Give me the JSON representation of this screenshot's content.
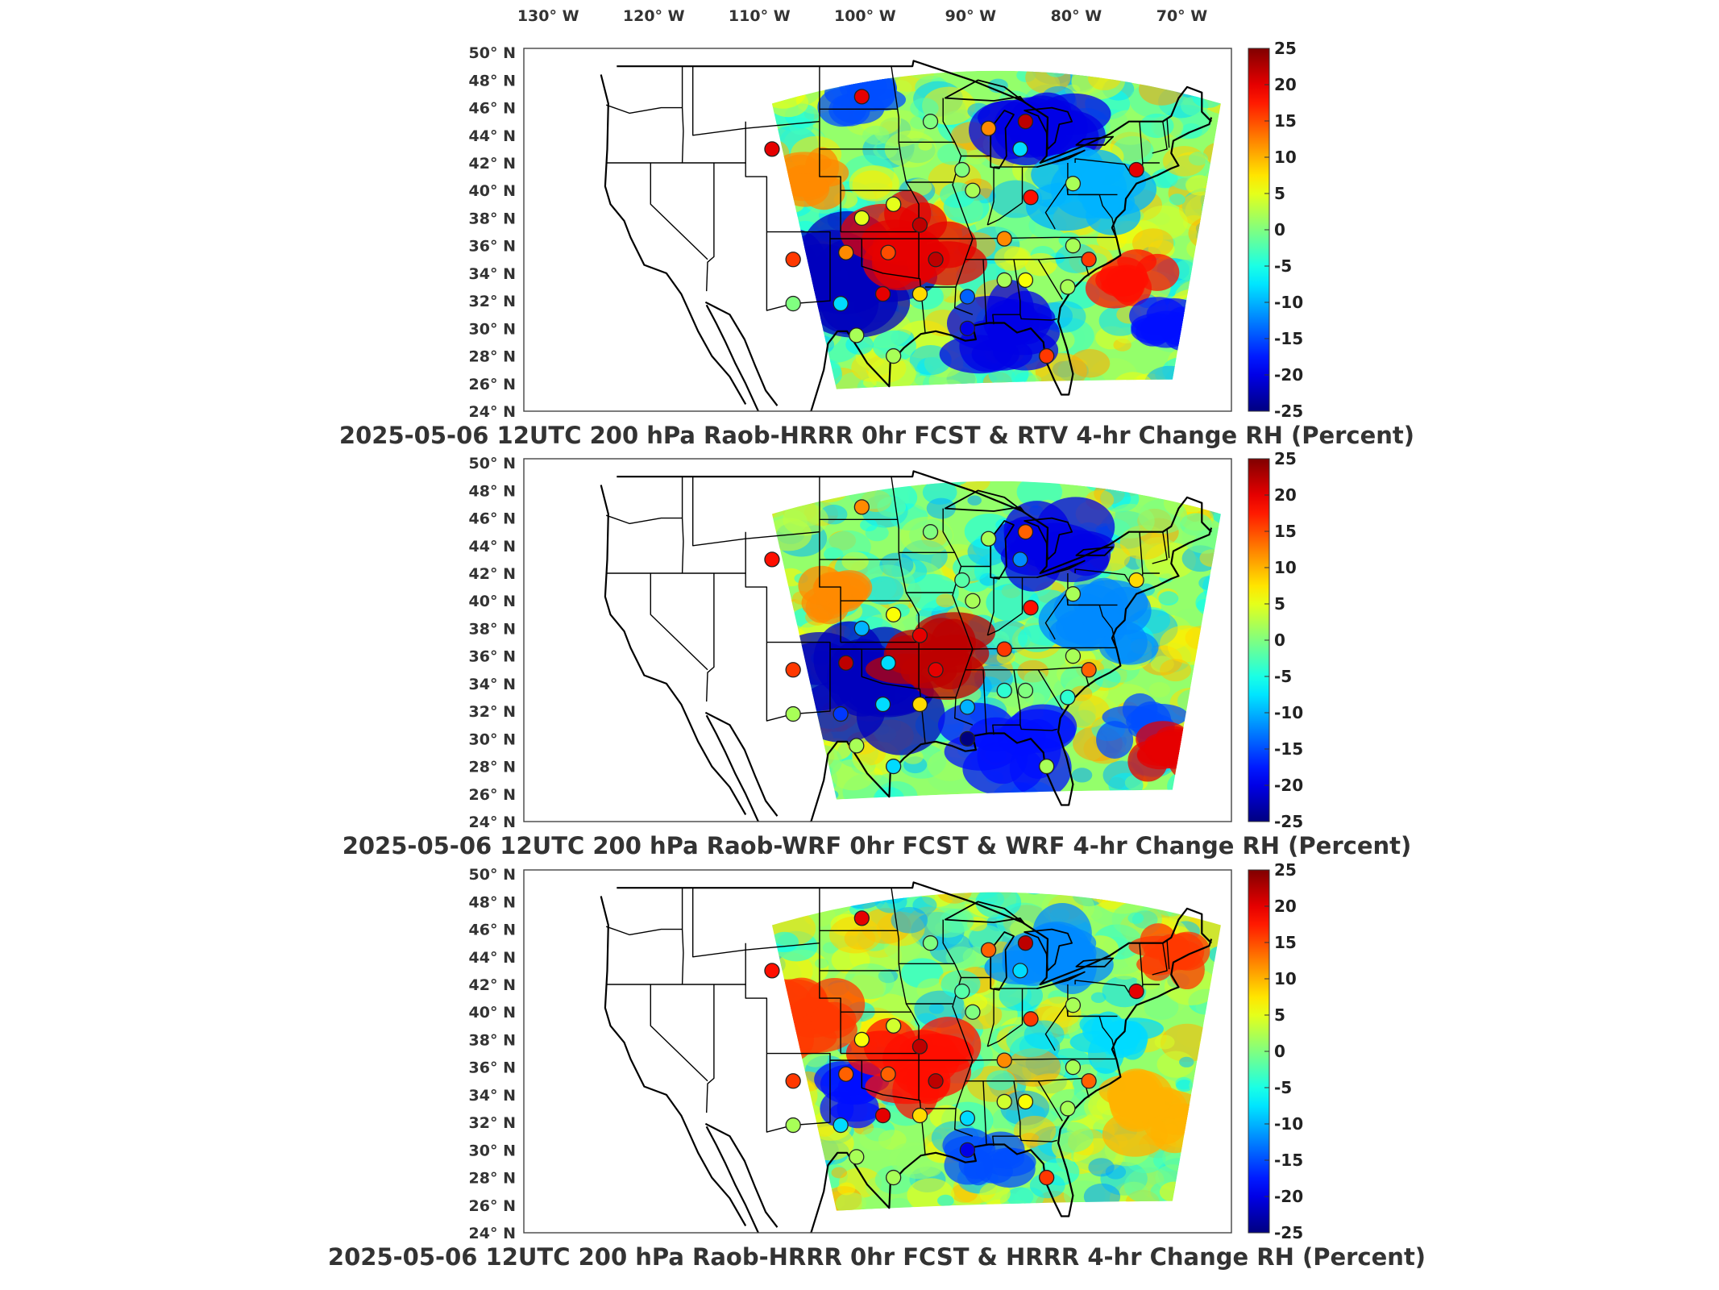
{
  "chart_data": [
    {
      "type": "heatmap",
      "title": "2025-05-06 12UTC 200 hPa Raob-HRRR 0hr FCST & RTV 4-hr Change RH (Percent)",
      "x_ticks": [
        "130° W",
        "120° W",
        "110° W",
        "100° W",
        "90° W",
        "80° W",
        "70° W"
      ],
      "y_ticks": [
        "50° N",
        "48° N",
        "46° N",
        "44° N",
        "42° N",
        "40° N",
        "38° N",
        "36° N",
        "34° N",
        "32° N",
        "30° N",
        "28° N",
        "26° N",
        "24° N"
      ],
      "colorbar": {
        "min": -25,
        "max": 25,
        "ticks": [
          "25",
          "20",
          "15",
          "10",
          "5",
          "0",
          "-5",
          "-10",
          "-15",
          "-20",
          "-25"
        ]
      },
      "field_features": [
        {
          "lon": -102,
          "lat": 33.5,
          "value": -22,
          "r": 4
        },
        {
          "lon": -87,
          "lat": 29.5,
          "value": -20,
          "r": 3
        },
        {
          "lon": -83,
          "lat": 44.5,
          "value": -20,
          "r": 3
        },
        {
          "lon": -95,
          "lat": 36.5,
          "value": 20,
          "r": 3
        },
        {
          "lon": -100,
          "lat": 46.5,
          "value": -15,
          "r": 2
        },
        {
          "lon": -74,
          "lat": 34,
          "value": 18,
          "r": 2
        },
        {
          "lon": -71,
          "lat": 30,
          "value": -18,
          "r": 2
        },
        {
          "lon": -78,
          "lat": 40,
          "value": -10,
          "r": 3
        },
        {
          "lon": -104,
          "lat": 41,
          "value": 12,
          "r": 2
        }
      ],
      "stations": [
        {
          "lon": -100,
          "lat": 46.8,
          "value": 20
        },
        {
          "lon": -108.5,
          "lat": 43.0,
          "value": 20
        },
        {
          "lon": -93.5,
          "lat": 45.0,
          "value": 0
        },
        {
          "lon": -88.0,
          "lat": 44.5,
          "value": 12
        },
        {
          "lon": -84.5,
          "lat": 45.0,
          "value": 22
        },
        {
          "lon": -85.0,
          "lat": 43.0,
          "value": -8
        },
        {
          "lon": -90.5,
          "lat": 41.5,
          "value": 0
        },
        {
          "lon": -89.5,
          "lat": 40.0,
          "value": 2
        },
        {
          "lon": -84.0,
          "lat": 39.5,
          "value": 18
        },
        {
          "lon": -80.0,
          "lat": 40.5,
          "value": 2
        },
        {
          "lon": -97.0,
          "lat": 39.0,
          "value": 5
        },
        {
          "lon": -100.0,
          "lat": 38.0,
          "value": 5
        },
        {
          "lon": -94.5,
          "lat": 37.5,
          "value": 22
        },
        {
          "lon": -93.0,
          "lat": 35.0,
          "value": 22
        },
        {
          "lon": -97.5,
          "lat": 35.5,
          "value": 15
        },
        {
          "lon": -101.5,
          "lat": 35.5,
          "value": 12
        },
        {
          "lon": -106.5,
          "lat": 35.0,
          "value": 16
        },
        {
          "lon": -98.0,
          "lat": 32.5,
          "value": 20
        },
        {
          "lon": -102.0,
          "lat": 31.8,
          "value": -8
        },
        {
          "lon": -94.5,
          "lat": 32.5,
          "value": 8
        },
        {
          "lon": -90.0,
          "lat": 32.3,
          "value": -14
        },
        {
          "lon": -86.5,
          "lat": 33.5,
          "value": 2
        },
        {
          "lon": -84.5,
          "lat": 33.5,
          "value": 6
        },
        {
          "lon": -86.5,
          "lat": 36.5,
          "value": 12
        },
        {
          "lon": -80.0,
          "lat": 36.0,
          "value": 2
        },
        {
          "lon": -78.5,
          "lat": 35.0,
          "value": 16
        },
        {
          "lon": -80.5,
          "lat": 33.0,
          "value": 2
        },
        {
          "lon": -74.0,
          "lat": 41.5,
          "value": 20
        },
        {
          "lon": -90.0,
          "lat": 30.0,
          "value": -20
        },
        {
          "lon": -97.0,
          "lat": 28.0,
          "value": 2
        },
        {
          "lon": -100.5,
          "lat": 29.5,
          "value": 2
        },
        {
          "lon": -106.5,
          "lat": 31.8,
          "value": 0
        },
        {
          "lon": -82.5,
          "lat": 28.0,
          "value": 16
        }
      ]
    },
    {
      "type": "heatmap",
      "title": "2025-05-06 12UTC 200 hPa Raob-WRF 0hr FCST & WRF 4-hr Change RH (Percent)",
      "x_ticks": [],
      "y_ticks": [
        "50° N",
        "48° N",
        "46° N",
        "44° N",
        "42° N",
        "40° N",
        "38° N",
        "36° N",
        "34° N",
        "32° N",
        "30° N",
        "28° N",
        "26° N",
        "24° N"
      ],
      "colorbar": {
        "min": -25,
        "max": 25,
        "ticks": [
          "25",
          "20",
          "15",
          "10",
          "5",
          "0",
          "-5",
          "-10",
          "-15",
          "-20",
          "-25"
        ]
      },
      "field_features": [
        {
          "lon": -100,
          "lat": 33.5,
          "value": -22,
          "r": 4
        },
        {
          "lon": -93,
          "lat": 36.5,
          "value": 22,
          "r": 3
        },
        {
          "lon": -82,
          "lat": 44.5,
          "value": -20,
          "r": 3
        },
        {
          "lon": -86,
          "lat": 29.5,
          "value": -18,
          "r": 3
        },
        {
          "lon": -74,
          "lat": 31,
          "value": -15,
          "r": 2
        },
        {
          "lon": -71,
          "lat": 29,
          "value": 20,
          "r": 2
        },
        {
          "lon": -103,
          "lat": 40.5,
          "value": 12,
          "r": 2
        },
        {
          "lon": -78,
          "lat": 38,
          "value": -12,
          "r": 3
        }
      ],
      "stations": [
        {
          "lon": -100,
          "lat": 46.8,
          "value": 12
        },
        {
          "lon": -108.5,
          "lat": 43.0,
          "value": 18
        },
        {
          "lon": -93.5,
          "lat": 45.0,
          "value": 0
        },
        {
          "lon": -88.0,
          "lat": 44.5,
          "value": 2
        },
        {
          "lon": -84.5,
          "lat": 45.0,
          "value": 14
        },
        {
          "lon": -85.0,
          "lat": 43.0,
          "value": -12
        },
        {
          "lon": -90.5,
          "lat": 41.5,
          "value": -2
        },
        {
          "lon": -89.5,
          "lat": 40.0,
          "value": 2
        },
        {
          "lon": -84.0,
          "lat": 39.5,
          "value": 18
        },
        {
          "lon": -80.0,
          "lat": 40.5,
          "value": 2
        },
        {
          "lon": -97.0,
          "lat": 39.0,
          "value": 6
        },
        {
          "lon": -100.0,
          "lat": 38.0,
          "value": -10
        },
        {
          "lon": -94.5,
          "lat": 37.5,
          "value": 20
        },
        {
          "lon": -93.0,
          "lat": 35.0,
          "value": 20
        },
        {
          "lon": -97.5,
          "lat": 35.5,
          "value": -8
        },
        {
          "lon": -101.5,
          "lat": 35.5,
          "value": 22
        },
        {
          "lon": -106.5,
          "lat": 35.0,
          "value": 16
        },
        {
          "lon": -98.0,
          "lat": 32.5,
          "value": -8
        },
        {
          "lon": -102.0,
          "lat": 31.8,
          "value": -16
        },
        {
          "lon": -94.5,
          "lat": 32.5,
          "value": 8
        },
        {
          "lon": -90.0,
          "lat": 32.3,
          "value": -10
        },
        {
          "lon": -86.5,
          "lat": 33.5,
          "value": -4
        },
        {
          "lon": -84.5,
          "lat": 33.5,
          "value": 0
        },
        {
          "lon": -86.5,
          "lat": 36.5,
          "value": 16
        },
        {
          "lon": -80.0,
          "lat": 36.0,
          "value": 2
        },
        {
          "lon": -78.5,
          "lat": 35.0,
          "value": 14
        },
        {
          "lon": -80.5,
          "lat": 33.0,
          "value": -4
        },
        {
          "lon": -74.0,
          "lat": 41.5,
          "value": 8
        },
        {
          "lon": -90.0,
          "lat": 30.0,
          "value": -25
        },
        {
          "lon": -97.0,
          "lat": 28.0,
          "value": -8
        },
        {
          "lon": -100.5,
          "lat": 29.5,
          "value": 2
        },
        {
          "lon": -106.5,
          "lat": 31.8,
          "value": 2
        },
        {
          "lon": -82.5,
          "lat": 28.0,
          "value": 2
        }
      ]
    },
    {
      "type": "heatmap",
      "title": "2025-05-06 12UTC 200 hPa Raob-HRRR 0hr FCST & HRRR 4-hr Change RH (Percent)",
      "x_ticks": [],
      "y_ticks": [
        "50° N",
        "48° N",
        "46° N",
        "44° N",
        "42° N",
        "40° N",
        "38° N",
        "36° N",
        "34° N",
        "32° N",
        "30° N",
        "28° N",
        "26° N",
        "24° N"
      ],
      "colorbar": {
        "min": -25,
        "max": 25,
        "ticks": [
          "25",
          "20",
          "15",
          "10",
          "5",
          "0",
          "-5",
          "-10",
          "-15",
          "-20",
          "-25"
        ]
      },
      "field_features": [
        {
          "lon": -105,
          "lat": 39.5,
          "value": 16,
          "r": 3
        },
        {
          "lon": -101,
          "lat": 34,
          "value": -18,
          "r": 2
        },
        {
          "lon": -95,
          "lat": 36,
          "value": 18,
          "r": 3
        },
        {
          "lon": -83,
          "lat": 44,
          "value": -12,
          "r": 3
        },
        {
          "lon": -88,
          "lat": 29.5,
          "value": -15,
          "r": 2
        },
        {
          "lon": -70,
          "lat": 44,
          "value": 16,
          "r": 2
        },
        {
          "lon": -73,
          "lat": 33,
          "value": 10,
          "r": 3
        },
        {
          "lon": -76,
          "lat": 38,
          "value": -8,
          "r": 2
        }
      ],
      "stations": [
        {
          "lon": -100,
          "lat": 46.8,
          "value": 20
        },
        {
          "lon": -108.5,
          "lat": 43.0,
          "value": 18
        },
        {
          "lon": -93.5,
          "lat": 45.0,
          "value": 0
        },
        {
          "lon": -88.0,
          "lat": 44.5,
          "value": 14
        },
        {
          "lon": -84.5,
          "lat": 45.0,
          "value": 22
        },
        {
          "lon": -85.0,
          "lat": 43.0,
          "value": -8
        },
        {
          "lon": -90.5,
          "lat": 41.5,
          "value": -2
        },
        {
          "lon": -89.5,
          "lat": 40.0,
          "value": 0
        },
        {
          "lon": -84.0,
          "lat": 39.5,
          "value": 16
        },
        {
          "lon": -80.0,
          "lat": 40.5,
          "value": 2
        },
        {
          "lon": -97.0,
          "lat": 39.0,
          "value": 4
        },
        {
          "lon": -100.0,
          "lat": 38.0,
          "value": 6
        },
        {
          "lon": -94.5,
          "lat": 37.5,
          "value": 22
        },
        {
          "lon": -93.0,
          "lat": 35.0,
          "value": 22
        },
        {
          "lon": -97.5,
          "lat": 35.5,
          "value": 14
        },
        {
          "lon": -101.5,
          "lat": 35.5,
          "value": 14
        },
        {
          "lon": -106.5,
          "lat": 35.0,
          "value": 16
        },
        {
          "lon": -98.0,
          "lat": 32.5,
          "value": 20
        },
        {
          "lon": -102.0,
          "lat": 31.8,
          "value": -8
        },
        {
          "lon": -94.5,
          "lat": 32.5,
          "value": 8
        },
        {
          "lon": -90.0,
          "lat": 32.3,
          "value": -8
        },
        {
          "lon": -86.5,
          "lat": 33.5,
          "value": 4
        },
        {
          "lon": -84.5,
          "lat": 33.5,
          "value": 6
        },
        {
          "lon": -86.5,
          "lat": 36.5,
          "value": 12
        },
        {
          "lon": -80.0,
          "lat": 36.0,
          "value": 2
        },
        {
          "lon": -78.5,
          "lat": 35.0,
          "value": 14
        },
        {
          "lon": -80.5,
          "lat": 33.0,
          "value": 2
        },
        {
          "lon": -74.0,
          "lat": 41.5,
          "value": 20
        },
        {
          "lon": -90.0,
          "lat": 30.0,
          "value": -20
        },
        {
          "lon": -97.0,
          "lat": 28.0,
          "value": 2
        },
        {
          "lon": -100.5,
          "lat": 29.5,
          "value": 2
        },
        {
          "lon": -106.5,
          "lat": 31.8,
          "value": 2
        },
        {
          "lon": -82.5,
          "lat": 28.0,
          "value": 16
        }
      ]
    }
  ]
}
